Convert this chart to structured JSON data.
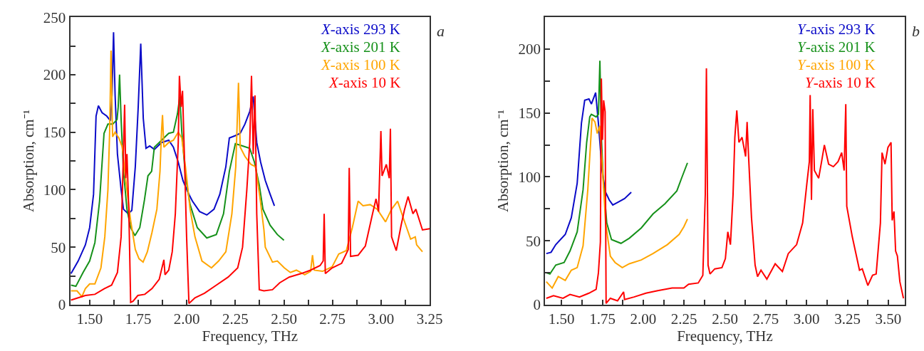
{
  "chart_data": [
    {
      "type": "line",
      "xlabel": "Frequency, THz",
      "ylabel": "Absorption, cm⁻¹",
      "annotations": [
        "a"
      ],
      "legend": "top right",
      "marker": "none",
      "line_style": "solid",
      "xlim": [
        1.4,
        3.25
      ],
      "ylim": [
        0,
        250
      ],
      "xticks": [
        {
          "value": 1.5,
          "label": "1.50"
        },
        {
          "value": 1.625,
          "label": null
        },
        {
          "value": 1.75,
          "label": "1.75"
        },
        {
          "value": 1.875,
          "label": null
        },
        {
          "value": 2.0,
          "label": "2.00"
        },
        {
          "value": 2.125,
          "label": null
        },
        {
          "value": 2.25,
          "label": "2.25"
        },
        {
          "value": 2.375,
          "label": null
        },
        {
          "value": 2.5,
          "label": "2.50"
        },
        {
          "value": 2.625,
          "label": null
        },
        {
          "value": 2.75,
          "label": "2.75"
        },
        {
          "value": 2.875,
          "label": null
        },
        {
          "value": 3.0,
          "label": "3.00"
        },
        {
          "value": 3.125,
          "label": null
        },
        {
          "value": 3.25,
          "label": "3.25"
        }
      ],
      "yticks": [
        0,
        {
          "value": 25,
          "label": null
        },
        50,
        {
          "value": 75,
          "label": null
        },
        100,
        {
          "value": 125,
          "label": null
        },
        150,
        {
          "value": 175,
          "label": null
        },
        200,
        {
          "value": 225,
          "label": null
        },
        250
      ],
      "series": [
        {
          "name": "X-axis 293 K",
          "color": "#0a0ac8",
          "x": [
            1.404,
            1.441,
            1.478,
            1.5,
            1.52,
            1.533,
            1.545,
            1.564,
            1.588,
            1.607,
            1.615,
            1.623,
            1.631,
            1.643,
            1.662,
            1.674,
            1.699,
            1.717,
            1.735,
            1.75,
            1.763,
            1.776,
            1.79,
            1.809,
            1.833,
            1.87,
            1.907,
            1.931,
            1.956,
            1.98,
            2.005,
            2.029,
            2.066,
            2.103,
            2.14,
            2.17,
            2.201,
            2.219,
            2.25,
            2.275,
            2.299,
            2.324,
            2.342,
            2.36,
            2.38,
            2.404,
            2.429,
            2.451
          ],
          "values": [
            27,
            38,
            52,
            67,
            96,
            164,
            173,
            167,
            164,
            160,
            182,
            237,
            182,
            131,
            100,
            83,
            79,
            82,
            120,
            172,
            227,
            162,
            136,
            138,
            135,
            141,
            143,
            137,
            124,
            108,
            98,
            90,
            81,
            78,
            83,
            96,
            120,
            145,
            147,
            149,
            157,
            168,
            181,
            141,
            124,
            108,
            96,
            86
          ]
        },
        {
          "name": "X-axis 201 K",
          "color": "#16911a",
          "x": [
            1.404,
            1.429,
            1.466,
            1.5,
            1.527,
            1.551,
            1.574,
            1.594,
            1.619,
            1.641,
            1.647,
            1.654,
            1.662,
            1.674,
            1.692,
            1.711,
            1.733,
            1.758,
            1.782,
            1.8,
            1.819,
            1.833,
            1.858,
            1.882,
            1.907,
            1.931,
            1.952,
            1.964,
            1.974,
            1.993,
            2.017,
            2.054,
            2.103,
            2.152,
            2.189,
            2.219,
            2.25,
            2.287,
            2.324,
            2.348,
            2.373,
            2.392,
            2.429,
            2.466,
            2.5
          ],
          "values": [
            17,
            16,
            28,
            38,
            54,
            90,
            149,
            157,
            157,
            161,
            172,
            200,
            161,
            116,
            83,
            67,
            60,
            67,
            91,
            112,
            116,
            137,
            141,
            145,
            149,
            150,
            166,
            181,
            151,
            112,
            87,
            67,
            58,
            61,
            79,
            116,
            140,
            138,
            136,
            124,
            104,
            83,
            69,
            61,
            56
          ]
        },
        {
          "name": "X-axis 100 K",
          "color": "#ffa500",
          "x": [
            1.404,
            1.435,
            1.46,
            1.478,
            1.5,
            1.527,
            1.558,
            1.578,
            1.594,
            1.603,
            1.61,
            1.618,
            1.631,
            1.65,
            1.668,
            1.686,
            1.711,
            1.735,
            1.754,
            1.775,
            1.797,
            1.821,
            1.846,
            1.862,
            1.87,
            1.875,
            1.882,
            1.907,
            1.931,
            1.956,
            1.974,
            1.993,
            2.017,
            2.042,
            2.078,
            2.127,
            2.164,
            2.201,
            2.232,
            2.252,
            2.266,
            2.275,
            2.299,
            2.33,
            2.354,
            2.379,
            2.397,
            2.404,
            2.441,
            2.466,
            2.502,
            2.533,
            2.564,
            2.607,
            2.637,
            2.647,
            2.656,
            2.699,
            2.748,
            2.782,
            2.821,
            2.852,
            2.882,
            2.907,
            2.944,
            2.98,
            3.023,
            3.054,
            3.085,
            3.115,
            3.152,
            3.176,
            3.183,
            3.213
          ],
          "values": [
            12,
            12,
            7,
            14,
            18,
            18,
            32,
            59,
            100,
            151,
            221,
            146,
            150,
            145,
            137,
            108,
            73,
            48,
            40,
            37,
            46,
            63,
            83,
            116,
            151,
            165,
            137,
            141,
            143,
            150,
            145,
            120,
            83,
            59,
            38,
            32,
            38,
            46,
            79,
            120,
            193,
            137,
            129,
            122,
            120,
            90,
            65,
            50,
            37,
            38,
            32,
            28,
            30,
            26,
            29,
            43,
            30,
            29,
            33,
            44,
            47,
            67,
            90,
            86,
            87,
            83,
            72,
            83,
            90,
            75,
            57,
            59,
            52,
            46
          ]
        },
        {
          "name": "X-axis 10 K",
          "color": "#ff0000",
          "x": [
            1.404,
            1.441,
            1.478,
            1.527,
            1.576,
            1.613,
            1.643,
            1.662,
            1.672,
            1.68,
            1.686,
            1.692,
            1.702,
            1.711,
            1.723,
            1.748,
            1.784,
            1.821,
            1.858,
            1.882,
            1.888,
            1.907,
            1.925,
            1.941,
            1.956,
            1.962,
            1.971,
            1.978,
            1.987,
            1.999,
            2.011,
            2.042,
            2.091,
            2.152,
            2.213,
            2.262,
            2.287,
            2.309,
            2.324,
            2.333,
            2.342,
            2.351,
            2.36,
            2.373,
            2.397,
            2.441,
            2.478,
            2.527,
            2.588,
            2.637,
            2.686,
            2.702,
            2.707,
            2.713,
            2.748,
            2.797,
            2.831,
            2.836,
            2.843,
            2.882,
            2.919,
            2.956,
            2.974,
            2.987,
            2.999,
            3.005,
            3.027,
            3.042,
            3.048,
            3.054,
            3.078,
            3.103,
            3.121,
            3.139,
            3.164,
            3.179,
            3.213,
            3.25
          ],
          "values": [
            4,
            6,
            8,
            9,
            14,
            17,
            28,
            59,
            120,
            174,
            110,
            131,
            79,
            2,
            3,
            8,
            9,
            14,
            22,
            39,
            26,
            30,
            46,
            79,
            141,
            199,
            172,
            186,
            133,
            59,
            1,
            6,
            10,
            17,
            24,
            32,
            50,
            100,
            141,
            199,
            131,
            182,
            79,
            13,
            12,
            13,
            19,
            24,
            27,
            30,
            34,
            38,
            79,
            27,
            32,
            36,
            48,
            119,
            42,
            43,
            51,
            79,
            92,
            81,
            151,
            112,
            122,
            110,
            153,
            59,
            47,
            69,
            83,
            94,
            79,
            83,
            65,
            66
          ]
        }
      ]
    },
    {
      "type": "line",
      "xlabel": "Frequency, THz",
      "ylabel": "Absorption, cm⁻¹",
      "annotations": [
        "b"
      ],
      "legend": "top right",
      "marker": "none",
      "line_style": "solid",
      "xlim": [
        1.4,
        3.6
      ],
      "ylim": [
        0,
        225
      ],
      "xticks": [
        {
          "value": 1.5,
          "label": "1.50"
        },
        {
          "value": 1.625,
          "label": null
        },
        {
          "value": 1.75,
          "label": "1.75"
        },
        {
          "value": 1.875,
          "label": null
        },
        {
          "value": 2.0,
          "label": "2.00"
        },
        {
          "value": 2.125,
          "label": null
        },
        {
          "value": 2.25,
          "label": "2.25"
        },
        {
          "value": 2.375,
          "label": null
        },
        {
          "value": 2.5,
          "label": "2.50"
        },
        {
          "value": 2.625,
          "label": null
        },
        {
          "value": 2.75,
          "label": "2.75"
        },
        {
          "value": 2.875,
          "label": null
        },
        {
          "value": 3.0,
          "label": "3.00"
        },
        {
          "value": 3.125,
          "label": null
        },
        {
          "value": 3.25,
          "label": "3.25"
        },
        {
          "value": 3.375,
          "label": null
        },
        {
          "value": 3.5,
          "label": "3.50"
        }
      ],
      "yticks": [
        0,
        {
          "value": 25,
          "label": null
        },
        50,
        {
          "value": 75,
          "label": null
        },
        100,
        {
          "value": 125,
          "label": null
        },
        150,
        {
          "value": 175,
          "label": null
        },
        200
      ],
      "series": [
        {
          "name": "Y-axis 293 K",
          "color": "#0a0ac8",
          "x": [
            1.407,
            1.436,
            1.465,
            1.523,
            1.56,
            1.596,
            1.622,
            1.642,
            1.668,
            1.683,
            1.709,
            1.726,
            1.748,
            1.77,
            1.792,
            1.814,
            1.843,
            1.886,
            1.927
          ],
          "values": [
            40,
            41,
            47,
            55,
            68,
            95,
            142,
            160,
            161,
            157,
            166,
            142,
            105,
            88,
            82,
            78,
            80,
            83,
            88
          ]
        },
        {
          "name": "Y-axis 201 K",
          "color": "#16911a",
          "x": [
            1.407,
            1.429,
            1.465,
            1.516,
            1.552,
            1.596,
            1.632,
            1.654,
            1.673,
            1.683,
            1.712,
            1.726,
            1.735,
            1.744,
            1.755,
            1.777,
            1.806,
            1.864,
            1.915,
            1.988,
            2.06,
            2.133,
            2.206,
            2.235,
            2.271
          ],
          "values": [
            25,
            24,
            31,
            33,
            42,
            57,
            90,
            127,
            147,
            149,
            147,
            149,
            191,
            132,
            99,
            64,
            51,
            48,
            52,
            60,
            71,
            79,
            89,
            99,
            111
          ]
        },
        {
          "name": "Y-axis 100 K",
          "color": "#ffa500",
          "x": [
            1.407,
            1.443,
            1.48,
            1.523,
            1.56,
            1.596,
            1.632,
            1.661,
            1.687,
            1.705,
            1.719,
            1.734,
            1.748,
            1.77,
            1.799,
            1.828,
            1.872,
            1.915,
            1.988,
            2.06,
            2.148,
            2.22,
            2.249,
            2.271
          ],
          "values": [
            18,
            13,
            22,
            19,
            27,
            29,
            46,
            90,
            146,
            143,
            134,
            140,
            112,
            64,
            38,
            33,
            29,
            32,
            35,
            40,
            47,
            55,
            61,
            67
          ]
        },
        {
          "name": "Y-axis 10 K",
          "color": "#ff0000",
          "x": [
            1.407,
            1.451,
            1.509,
            1.552,
            1.61,
            1.668,
            1.712,
            1.726,
            1.738,
            1.744,
            1.751,
            1.758,
            1.767,
            1.773,
            1.799,
            1.843,
            1.88,
            1.886,
            1.944,
            2.017,
            2.089,
            2.177,
            2.249,
            2.278,
            2.337,
            2.365,
            2.38,
            2.387,
            2.397,
            2.409,
            2.438,
            2.482,
            2.503,
            2.518,
            2.534,
            2.55,
            2.561,
            2.573,
            2.586,
            2.605,
            2.627,
            2.636,
            2.644,
            2.663,
            2.685,
            2.7,
            2.721,
            2.757,
            2.808,
            2.852,
            2.888,
            2.939,
            2.976,
            3.002,
            3.017,
            3.022,
            3.03,
            3.038,
            3.048,
            3.074,
            3.092,
            3.109,
            3.135,
            3.164,
            3.193,
            3.215,
            3.23,
            3.24,
            3.246,
            3.28,
            3.324,
            3.341,
            3.375,
            3.404,
            3.426,
            3.452,
            3.462,
            3.48,
            3.498,
            3.517,
            3.524,
            3.535,
            3.545,
            3.556,
            3.571,
            3.593
          ],
          "values": [
            5,
            7,
            5,
            8,
            6,
            9,
            12,
            25,
            49,
            177,
            129,
            160,
            151,
            1,
            5,
            3,
            10,
            4,
            6,
            9,
            11,
            13,
            13,
            16,
            17,
            23,
            86,
            185,
            31,
            24,
            28,
            29,
            36,
            57,
            47,
            86,
            131,
            152,
            127,
            131,
            116,
            143,
            119,
            68,
            31,
            22,
            27,
            20,
            32,
            26,
            40,
            47,
            64,
            95,
            112,
            164,
            82,
            153,
            105,
            99,
            112,
            125,
            110,
            108,
            112,
            119,
            105,
            157,
            77,
            53,
            27,
            28,
            15,
            23,
            24,
            64,
            119,
            110,
            123,
            127,
            66,
            73,
            42,
            38,
            18,
            5
          ]
        }
      ]
    }
  ]
}
